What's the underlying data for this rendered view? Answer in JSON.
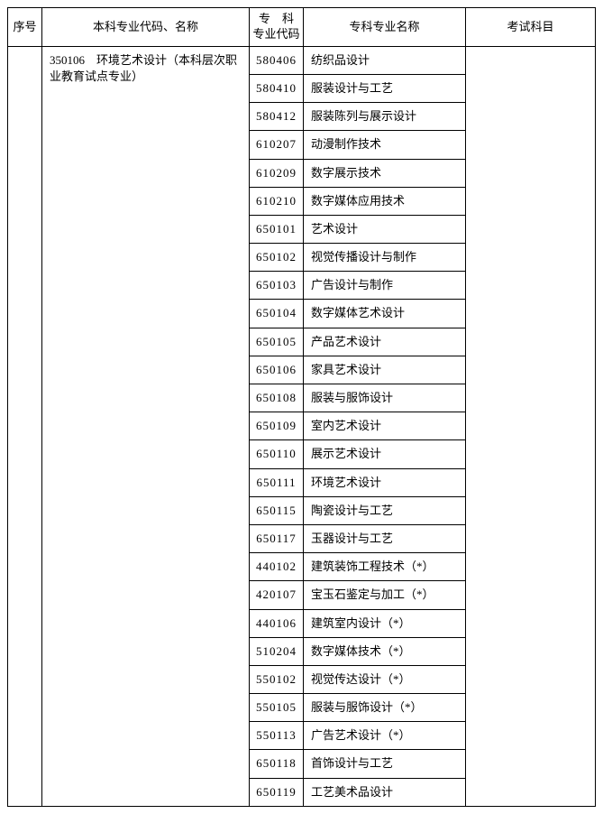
{
  "table": {
    "headers": {
      "seq": "序号",
      "major": "本科专业代码、名称",
      "code_line1": "专　科",
      "code_line2": "专业代码",
      "name": "专科专业名称",
      "subject": "考试科目"
    },
    "seq": "",
    "major": "350106　环境艺术设计（本科层次职业教育试点专业）",
    "subject": "",
    "rows": [
      {
        "code": "580406",
        "name": "纺织品设计"
      },
      {
        "code": "580410",
        "name": "服装设计与工艺"
      },
      {
        "code": "580412",
        "name": "服装陈列与展示设计"
      },
      {
        "code": "610207",
        "name": "动漫制作技术"
      },
      {
        "code": "610209",
        "name": "数字展示技术"
      },
      {
        "code": "610210",
        "name": "数字媒体应用技术"
      },
      {
        "code": "650101",
        "name": "艺术设计"
      },
      {
        "code": "650102",
        "name": "视觉传播设计与制作"
      },
      {
        "code": "650103",
        "name": "广告设计与制作"
      },
      {
        "code": "650104",
        "name": "数字媒体艺术设计"
      },
      {
        "code": "650105",
        "name": "产品艺术设计"
      },
      {
        "code": "650106",
        "name": "家具艺术设计"
      },
      {
        "code": "650108",
        "name": "服装与服饰设计"
      },
      {
        "code": "650109",
        "name": "室内艺术设计"
      },
      {
        "code": "650110",
        "name": "展示艺术设计"
      },
      {
        "code": "650111",
        "name": "环境艺术设计"
      },
      {
        "code": "650115",
        "name": "陶瓷设计与工艺"
      },
      {
        "code": "650117",
        "name": "玉器设计与工艺"
      },
      {
        "code": "440102",
        "name": "建筑装饰工程技术（*）"
      },
      {
        "code": "420107",
        "name": "宝玉石鉴定与加工（*）"
      },
      {
        "code": "440106",
        "name": "建筑室内设计（*）"
      },
      {
        "code": "510204",
        "name": "数字媒体技术（*）"
      },
      {
        "code": "550102",
        "name": "视觉传达设计（*）"
      },
      {
        "code": "550105",
        "name": "服装与服饰设计（*）"
      },
      {
        "code": "550113",
        "name": "广告艺术设计（*）"
      },
      {
        "code": "650118",
        "name": "首饰设计与工艺"
      },
      {
        "code": "650119",
        "name": "工艺美术品设计"
      }
    ]
  }
}
